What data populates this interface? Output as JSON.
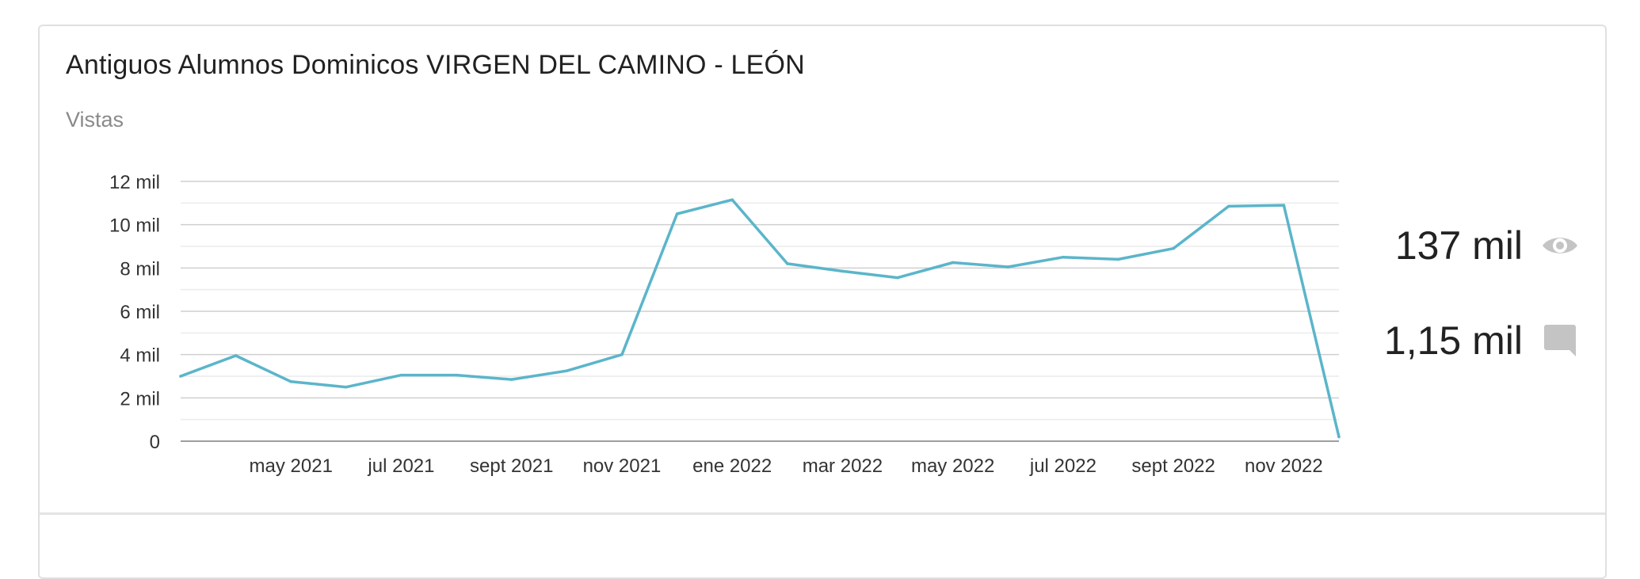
{
  "card": {
    "title": "Antiguos Alumnos Dominicos VIRGEN DEL CAMINO - LEÓN",
    "subtitle": "Vistas"
  },
  "stats": {
    "views_value": "137 mil",
    "views_icon": "eye-icon",
    "comments_value": "1,15 mil",
    "comments_icon": "comment-icon"
  },
  "colors": {
    "line": "#5bb5ca",
    "icon": "#c4c4c4"
  },
  "chart_data": {
    "type": "line",
    "title": "",
    "xlabel": "",
    "ylabel": "",
    "y_tick_labels": [
      "0",
      "2 mil",
      "4 mil",
      "6 mil",
      "8 mil",
      "10 mil",
      "12 mil"
    ],
    "y_tick_values": [
      0,
      2000,
      4000,
      6000,
      8000,
      10000,
      12000
    ],
    "x_tick_labels": [
      "may 2021",
      "jul 2021",
      "sept 2021",
      "nov 2021",
      "ene 2022",
      "mar 2022",
      "may 2022",
      "jul 2022",
      "sept 2022",
      "nov 2022"
    ],
    "x_tick_index": [
      2,
      4,
      6,
      8,
      10,
      12,
      14,
      16,
      18,
      20
    ],
    "ylim": [
      0,
      12000
    ],
    "grid": true,
    "series": [
      {
        "values": [
          3000,
          3950,
          2750,
          2500,
          3050,
          3050,
          2850,
          3250,
          4000,
          10500,
          11150,
          8200,
          7850,
          7550,
          8250,
          8050,
          8500,
          8400,
          8900,
          10850,
          10900,
          200
        ]
      }
    ]
  }
}
